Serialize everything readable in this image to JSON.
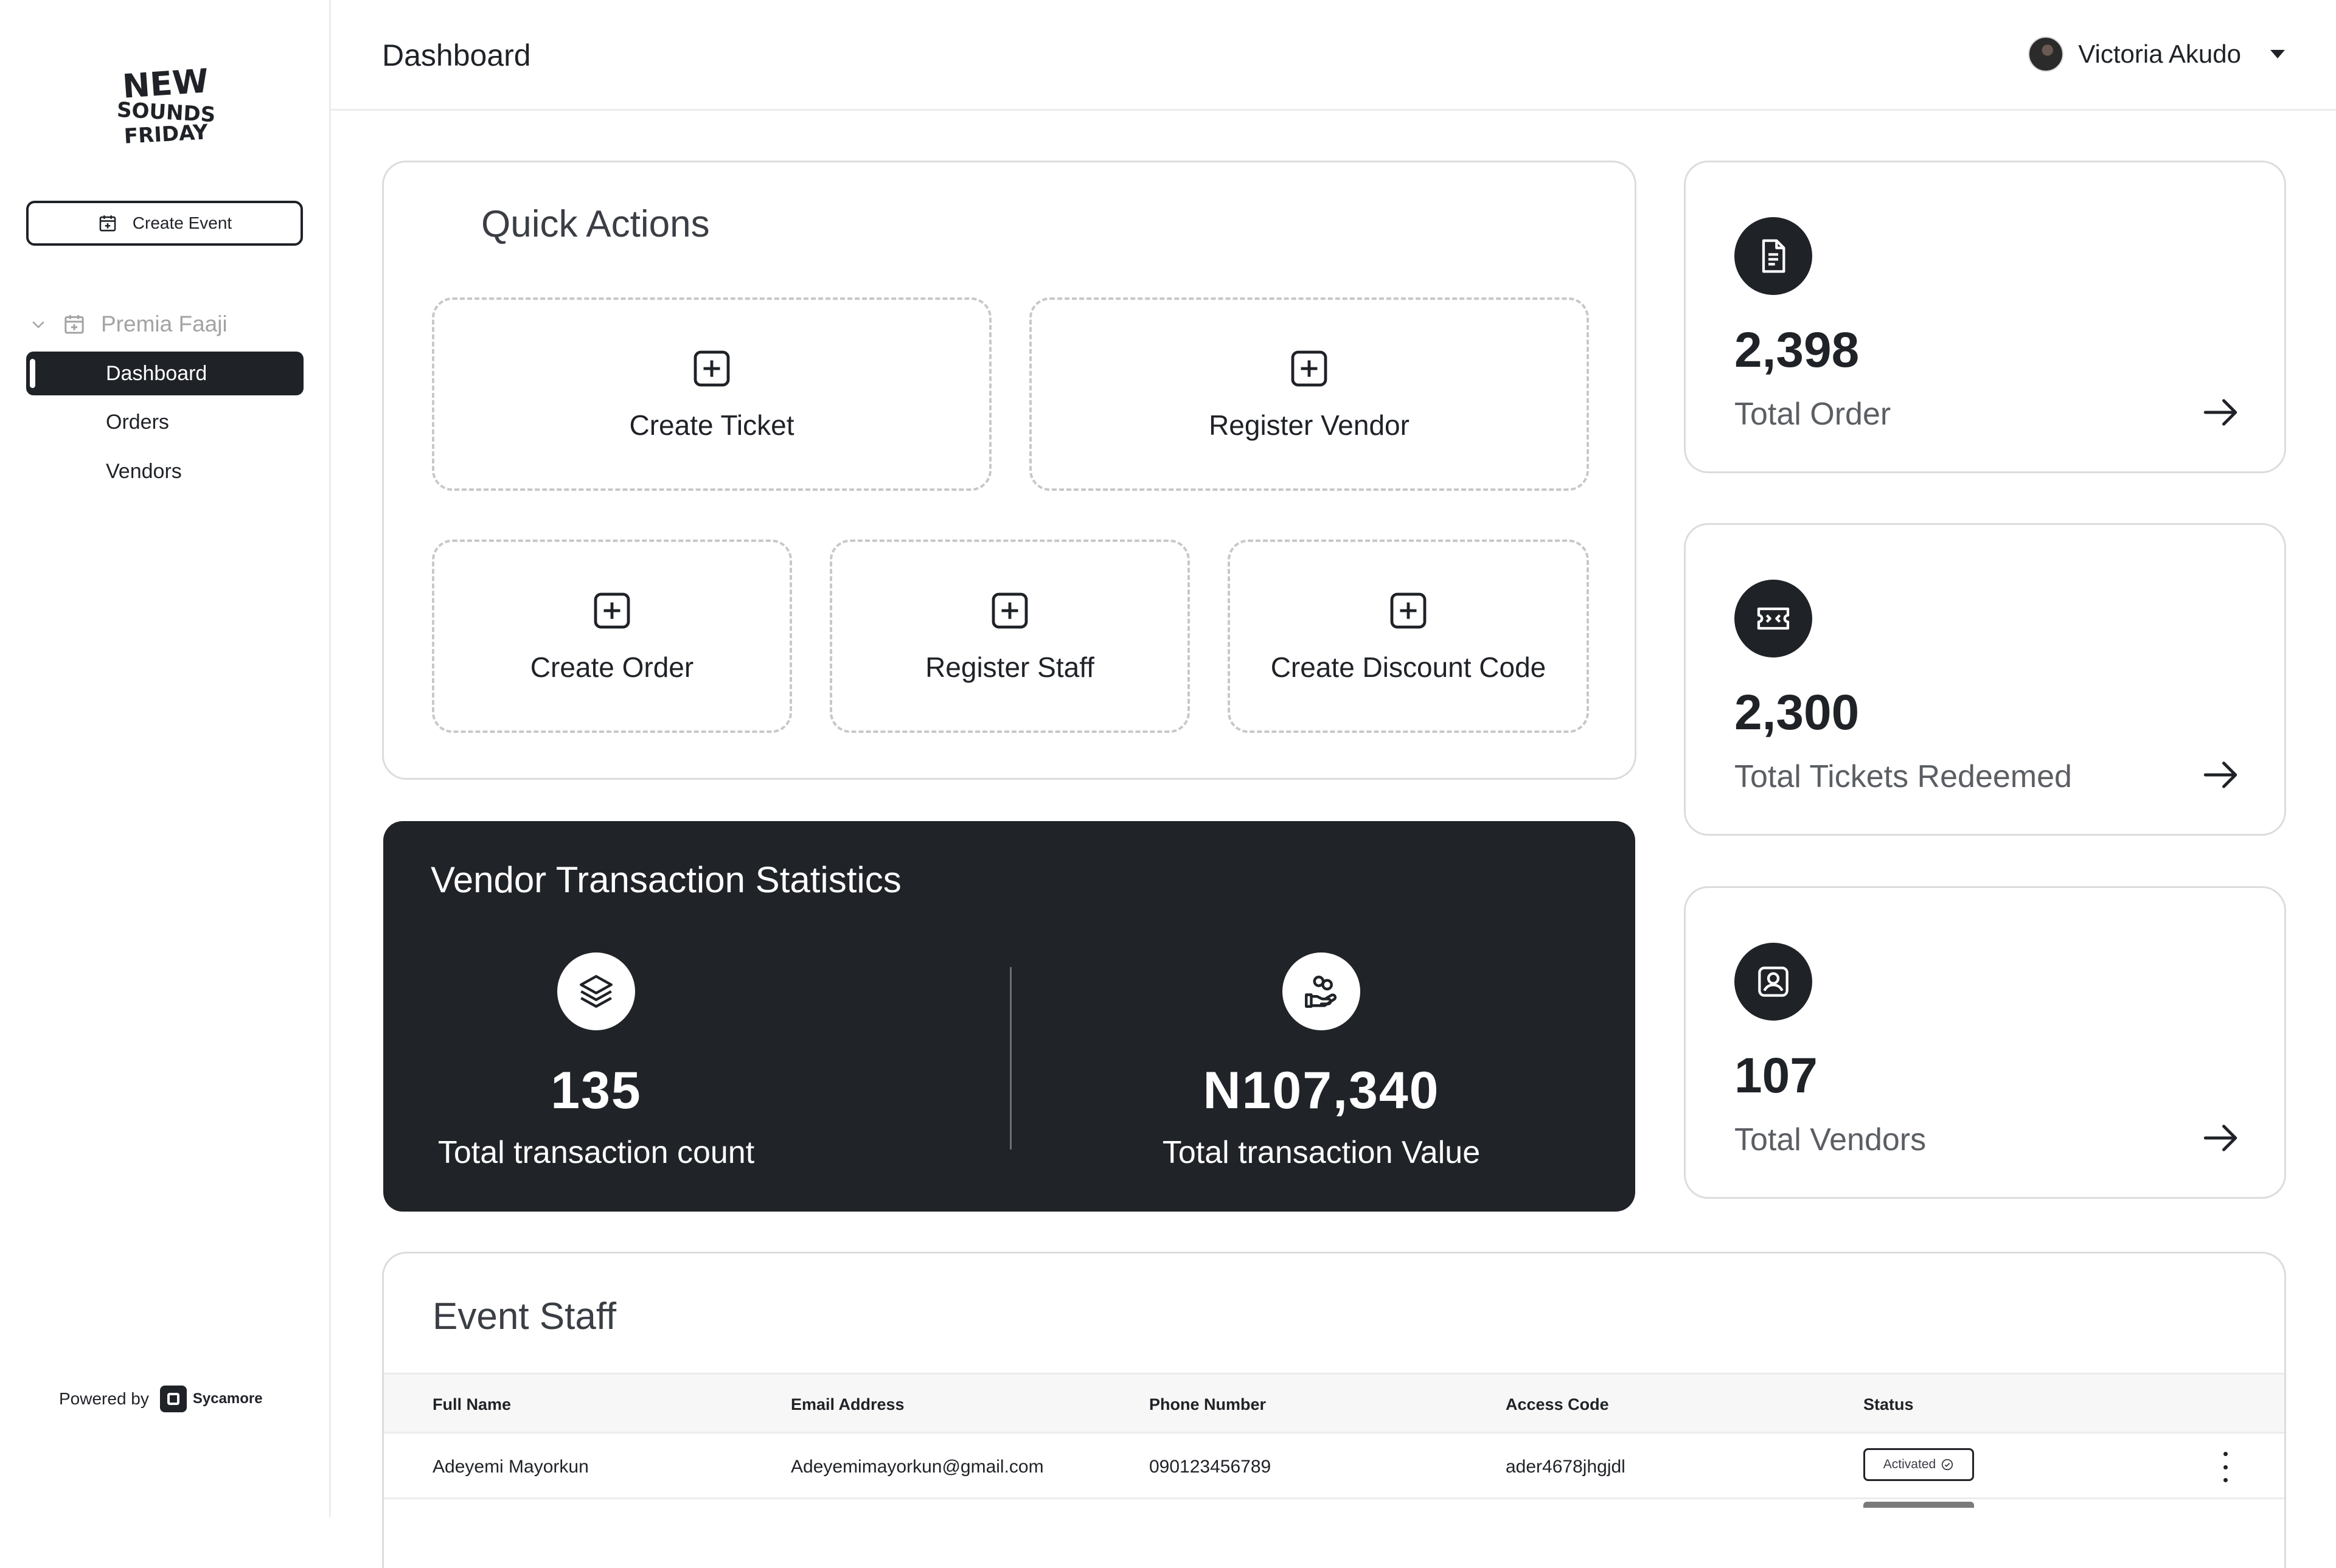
{
  "brand": {
    "logo_lines": [
      "NEW",
      "SOUNDS",
      "FRIDAY"
    ],
    "powered_by_label": "Powered by",
    "powered_by_brand": "Sycamore"
  },
  "sidebar": {
    "create_event_label": "Create Event",
    "event_name": "Premia Faaji",
    "items": [
      {
        "label": "Dashboard",
        "active": true
      },
      {
        "label": "Orders",
        "active": false
      },
      {
        "label": "Vendors",
        "active": false
      }
    ]
  },
  "header": {
    "title": "Dashboard",
    "user_name": "Victoria Akudo"
  },
  "quick_actions": {
    "title": "Quick Actions",
    "actions": [
      {
        "label": "Create Ticket",
        "icon": "plus-square-icon"
      },
      {
        "label": "Register Vendor",
        "icon": "plus-square-icon"
      },
      {
        "label": "Create Order",
        "icon": "plus-square-icon"
      },
      {
        "label": "Register Staff",
        "icon": "plus-square-icon"
      },
      {
        "label": "Create Discount Code",
        "icon": "plus-square-icon"
      }
    ]
  },
  "vendor_stats": {
    "title": "Vendor Transaction Statistics",
    "count_value": "135",
    "count_label": "Total transaction count",
    "value_value": "N107,340",
    "value_label": "Total transaction Value"
  },
  "stats": [
    {
      "value": "2,398",
      "label": "Total Order",
      "icon": "document-icon"
    },
    {
      "value": "2,300",
      "label": "Total Tickets Redeemed",
      "icon": "ticket-icon"
    },
    {
      "value": "107",
      "label": "Total Vendors",
      "icon": "id-badge-icon"
    }
  ],
  "event_staff": {
    "title": "Event Staff",
    "columns": [
      "Full Name",
      "Email Address",
      "Phone Number",
      "Access Code",
      "Status"
    ],
    "rows": [
      {
        "full_name": "Adeyemi Mayorkun",
        "email": "Adeyemimayorkun@gmail.com",
        "phone": "090123456789",
        "access_code": "ader4678jhgjdl",
        "status": "Activated"
      }
    ]
  },
  "colors": {
    "primary_dark": "#1f2227",
    "muted_text": "#5b5e63",
    "border": "#dcdcdc",
    "dashed_border": "#c8c8c8"
  }
}
